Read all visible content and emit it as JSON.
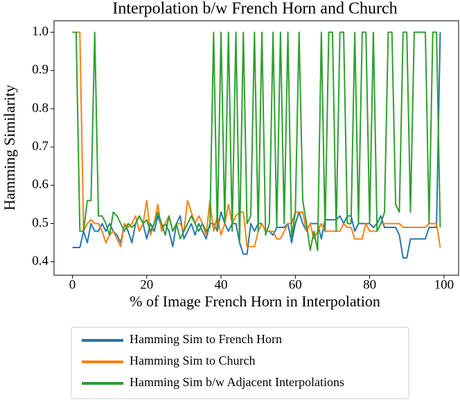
{
  "chart_data": {
    "type": "line",
    "title": "Interpolation b/w French Horn and Church",
    "x_label": "% of Image French Horn in Interpolation",
    "y_label": "Hamming Similarity",
    "x": [
      0,
      1,
      2,
      3,
      4,
      5,
      6,
      7,
      8,
      9,
      10,
      11,
      12,
      13,
      14,
      15,
      16,
      17,
      18,
      19,
      20,
      21,
      22,
      23,
      24,
      25,
      26,
      27,
      28,
      29,
      30,
      31,
      32,
      33,
      34,
      35,
      36,
      37,
      38,
      39,
      40,
      41,
      42,
      43,
      44,
      45,
      46,
      47,
      48,
      49,
      50,
      51,
      52,
      53,
      54,
      55,
      56,
      57,
      58,
      59,
      60,
      61,
      62,
      63,
      64,
      65,
      66,
      67,
      68,
      69,
      70,
      71,
      72,
      73,
      74,
      75,
      76,
      77,
      78,
      79,
      80,
      81,
      82,
      83,
      84,
      85,
      86,
      87,
      88,
      89,
      90,
      91,
      92,
      93,
      94,
      95,
      96,
      97,
      98,
      99
    ],
    "series": [
      {
        "name": "Hamming Sim to French Horn",
        "color": "#1f77b4",
        "values": [
          0.4375,
          0.4375,
          0.4375,
          0.48,
          0.45,
          0.5,
          0.48,
          0.48,
          0.5,
          0.48,
          0.5,
          0.48,
          0.47,
          0.45,
          0.5,
          0.48,
          0.45,
          0.5,
          0.52,
          0.5,
          0.46,
          0.5,
          0.48,
          0.52,
          0.49,
          0.5,
          0.48,
          0.44,
          0.5,
          0.52,
          0.46,
          0.48,
          0.5,
          0.47,
          0.5,
          0.48,
          0.46,
          0.5,
          0.5,
          0.48,
          0.53,
          0.5,
          0.48,
          0.5,
          0.5,
          0.45,
          0.42,
          0.42,
          0.5,
          0.48,
          0.5,
          0.5,
          0.48,
          0.48,
          0.47,
          0.49,
          0.49,
          0.49,
          0.5,
          0.45,
          0.5,
          0.53,
          0.5,
          0.48,
          0.5,
          0.5,
          0.5,
          0.46,
          0.51,
          0.51,
          0.51,
          0.51,
          0.52,
          0.5,
          0.52,
          0.52,
          0.48,
          0.5,
          0.5,
          0.5,
          0.5,
          0.49,
          0.5,
          0.52,
          0.49,
          0.49,
          0.49,
          0.49,
          0.47,
          0.41,
          0.41,
          0.46,
          0.46,
          0.46,
          0.46,
          0.46,
          0.49,
          0.49,
          0.49,
          1.0
        ]
      },
      {
        "name": "Hamming Sim to Church",
        "color": "#ff7f0e",
        "values": [
          1.0,
          1.0,
          1.0,
          0.48,
          0.5,
          0.51,
          0.5,
          0.5,
          0.48,
          0.45,
          0.47,
          0.48,
          0.46,
          0.44,
          0.5,
          0.49,
          0.5,
          0.52,
          0.48,
          0.5,
          0.56,
          0.47,
          0.5,
          0.55,
          0.48,
          0.5,
          0.52,
          0.48,
          0.5,
          0.5,
          0.48,
          0.56,
          0.53,
          0.5,
          0.52,
          0.5,
          0.47,
          0.56,
          0.48,
          0.52,
          0.47,
          0.5,
          0.55,
          0.5,
          0.52,
          0.53,
          0.53,
          0.44,
          0.44,
          0.44,
          0.48,
          0.5,
          0.48,
          0.48,
          0.48,
          0.46,
          0.46,
          0.48,
          0.5,
          0.5,
          0.53,
          0.53,
          0.53,
          0.48,
          0.5,
          0.46,
          0.48,
          0.5,
          0.48,
          0.48,
          0.48,
          0.48,
          0.48,
          0.5,
          0.49,
          0.49,
          0.46,
          0.46,
          0.46,
          0.5,
          0.48,
          0.48,
          0.48,
          0.5,
          0.5,
          0.5,
          0.5,
          0.5,
          0.5,
          0.49,
          0.49,
          0.49,
          0.49,
          0.49,
          0.49,
          0.49,
          0.5,
          0.5,
          0.5,
          0.4375
        ]
      },
      {
        "name": "Hamming Sim b/w Adjacent Interpolations",
        "color": "#2ca02c",
        "values": [
          1.0,
          1.0,
          0.48,
          0.48,
          0.56,
          0.56,
          1.0,
          0.52,
          0.52,
          0.5,
          0.47,
          0.53,
          0.52,
          0.5,
          0.48,
          0.5,
          0.49,
          0.5,
          0.52,
          0.5,
          0.51,
          0.48,
          0.5,
          0.53,
          0.5,
          0.47,
          0.52,
          0.48,
          0.5,
          0.46,
          0.48,
          0.5,
          0.52,
          0.5,
          0.48,
          0.5,
          0.48,
          0.49,
          1.0,
          0.48,
          1.0,
          0.5,
          1.0,
          0.48,
          1.0,
          0.45,
          1.0,
          0.5,
          0.52,
          1.0,
          0.48,
          1.0,
          0.47,
          0.5,
          1.0,
          0.49,
          1.0,
          0.5,
          1.0,
          0.46,
          0.53,
          1.0,
          0.56,
          0.5,
          0.43,
          0.48,
          0.43,
          1.0,
          0.48,
          1.0,
          1.0,
          0.48,
          1.0,
          1.0,
          0.5,
          0.5,
          1.0,
          0.5,
          1.0,
          1.0,
          0.5,
          1.0,
          0.48,
          0.5,
          0.53,
          1.0,
          1.0,
          0.55,
          0.53,
          1.0,
          1.0,
          0.53,
          1.0,
          1.0,
          1.0,
          1.0,
          0.5,
          1.0,
          1.0,
          0.49
        ]
      }
    ],
    "xlim": [
      -4.95,
      103.95
    ],
    "xticks": [
      0,
      20,
      40,
      60,
      80,
      100
    ],
    "ylim": [
      0.365,
      1.03
    ],
    "yticks": [
      0.4,
      0.5,
      0.6,
      0.7,
      0.8,
      0.9,
      {
        "value": 1.0,
        "label": "1.0"
      }
    ],
    "legend": "lower center"
  }
}
